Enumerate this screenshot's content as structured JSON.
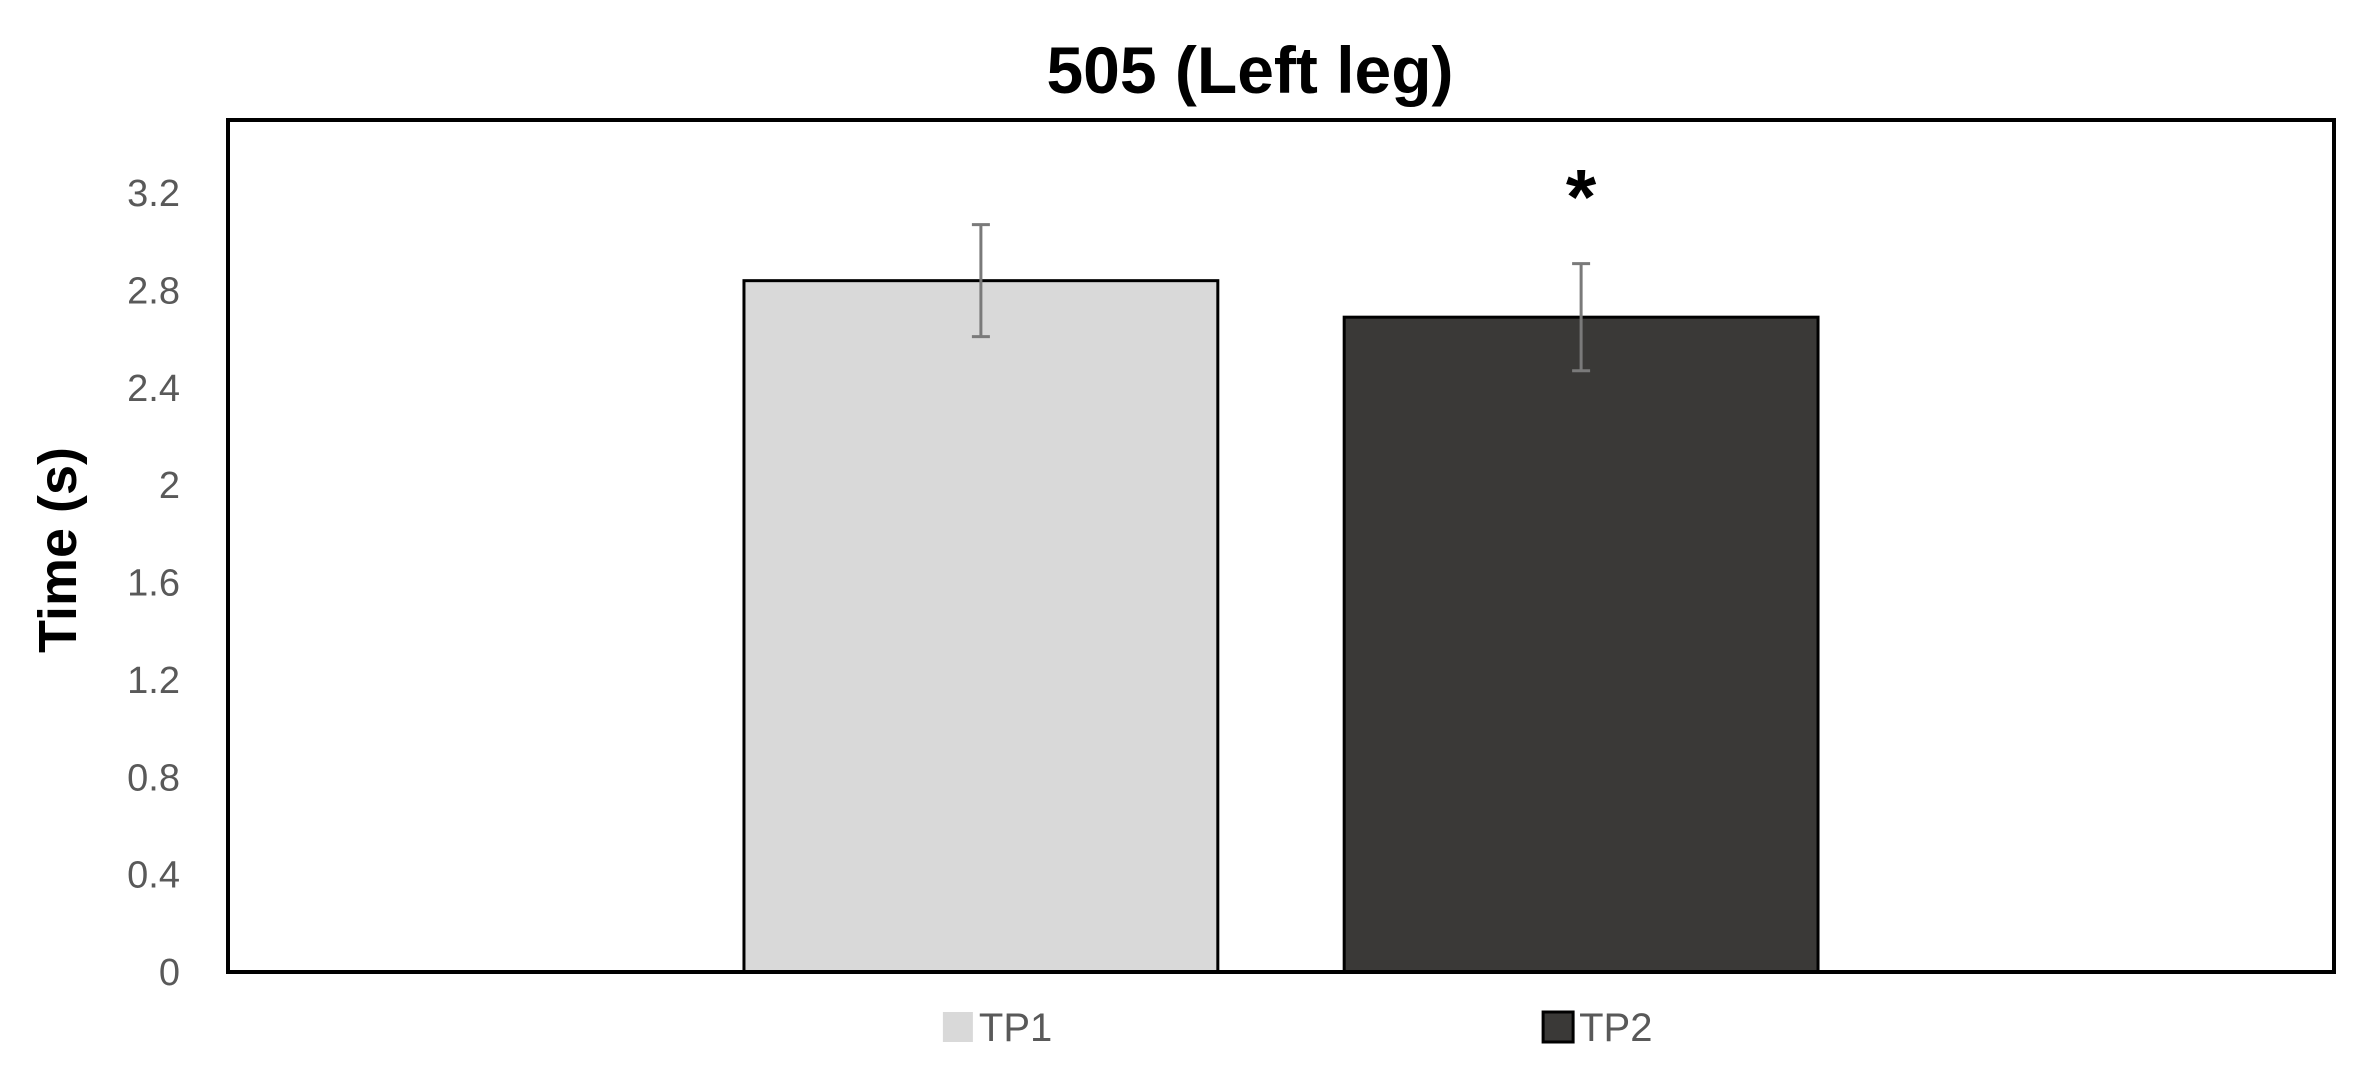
{
  "chart_data": {
    "type": "bar",
    "title": "505 (Left leg)",
    "ylabel": "Time (s)",
    "xlabel": "",
    "ylim": [
      0,
      3.5
    ],
    "yticks": [
      "0",
      "0.4",
      "0.8",
      "1.2",
      "1.6",
      "2",
      "2.4",
      "2.8",
      "3.2"
    ],
    "grid": false,
    "legend_position": "bottom",
    "series": [
      {
        "name": "TP1",
        "value": 2.84,
        "error_low": 2.61,
        "error_high": 3.07,
        "color": "#d9d9d9",
        "annotation": ""
      },
      {
        "name": "TP2",
        "value": 2.69,
        "error_low": 2.47,
        "error_high": 2.91,
        "color": "#3a3937",
        "annotation": "*"
      }
    ]
  }
}
